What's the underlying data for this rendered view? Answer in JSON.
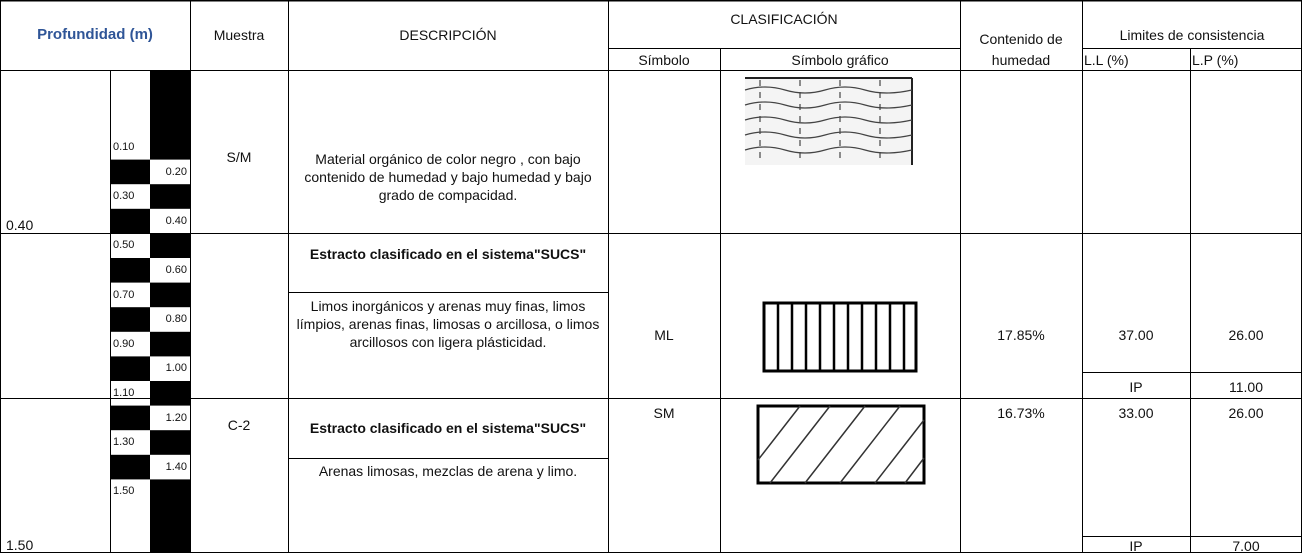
{
  "header": {
    "profundidad": "Profundidad (m)",
    "muestra": "Muestra",
    "descripcion": "DESCRIPCIÓN",
    "clasificacion": "CLASIFICACIÓN",
    "simbolo": "Símbolo",
    "simbolo_grafico": "Símbolo gráfico",
    "contenido": "Contenido de",
    "humedad": "humedad",
    "limites": "Limites de consistencia",
    "ll": "L.L (%)",
    "lp": "L.P (%)"
  },
  "depth_scale": [
    "0.10",
    "0.20",
    "0.30",
    "0.40",
    "0.50",
    "0.60",
    "0.70",
    "0.80",
    "0.90",
    "1.00",
    "1.10",
    "1.20",
    "1.30",
    "1.40",
    "1.50"
  ],
  "rows": [
    {
      "depth": "0.40",
      "muestra": "S/M",
      "descripcion": "Material orgánico de  color negro , con bajo contenido de humedad y bajo humedad y bajo  grado de compacidad."
    },
    {
      "titulo": "Estracto clasificado en el sistema\"SUCS\"",
      "descripcion": "Limos inorgánicos y arenas muy finas, limos límpios, arenas finas, limosas o arcillosa, o limos arcillosos con ligera plásticidad.",
      "simbolo": "ML",
      "humedad": "17.85%",
      "ll": "37.00",
      "lp": "26.00",
      "ip_label": "IP",
      "ip": "11.00"
    },
    {
      "depth": "1.50",
      "muestra": "C-2",
      "titulo": "Estracto clasificado en el sistema\"SUCS\"",
      "descripcion": "Arenas limosas, mezclas de arena y limo.",
      "simbolo": "SM",
      "humedad": "16.73%",
      "ll": "33.00",
      "lp": "26.00",
      "ip_label": "IP",
      "ip": "7.00"
    }
  ]
}
